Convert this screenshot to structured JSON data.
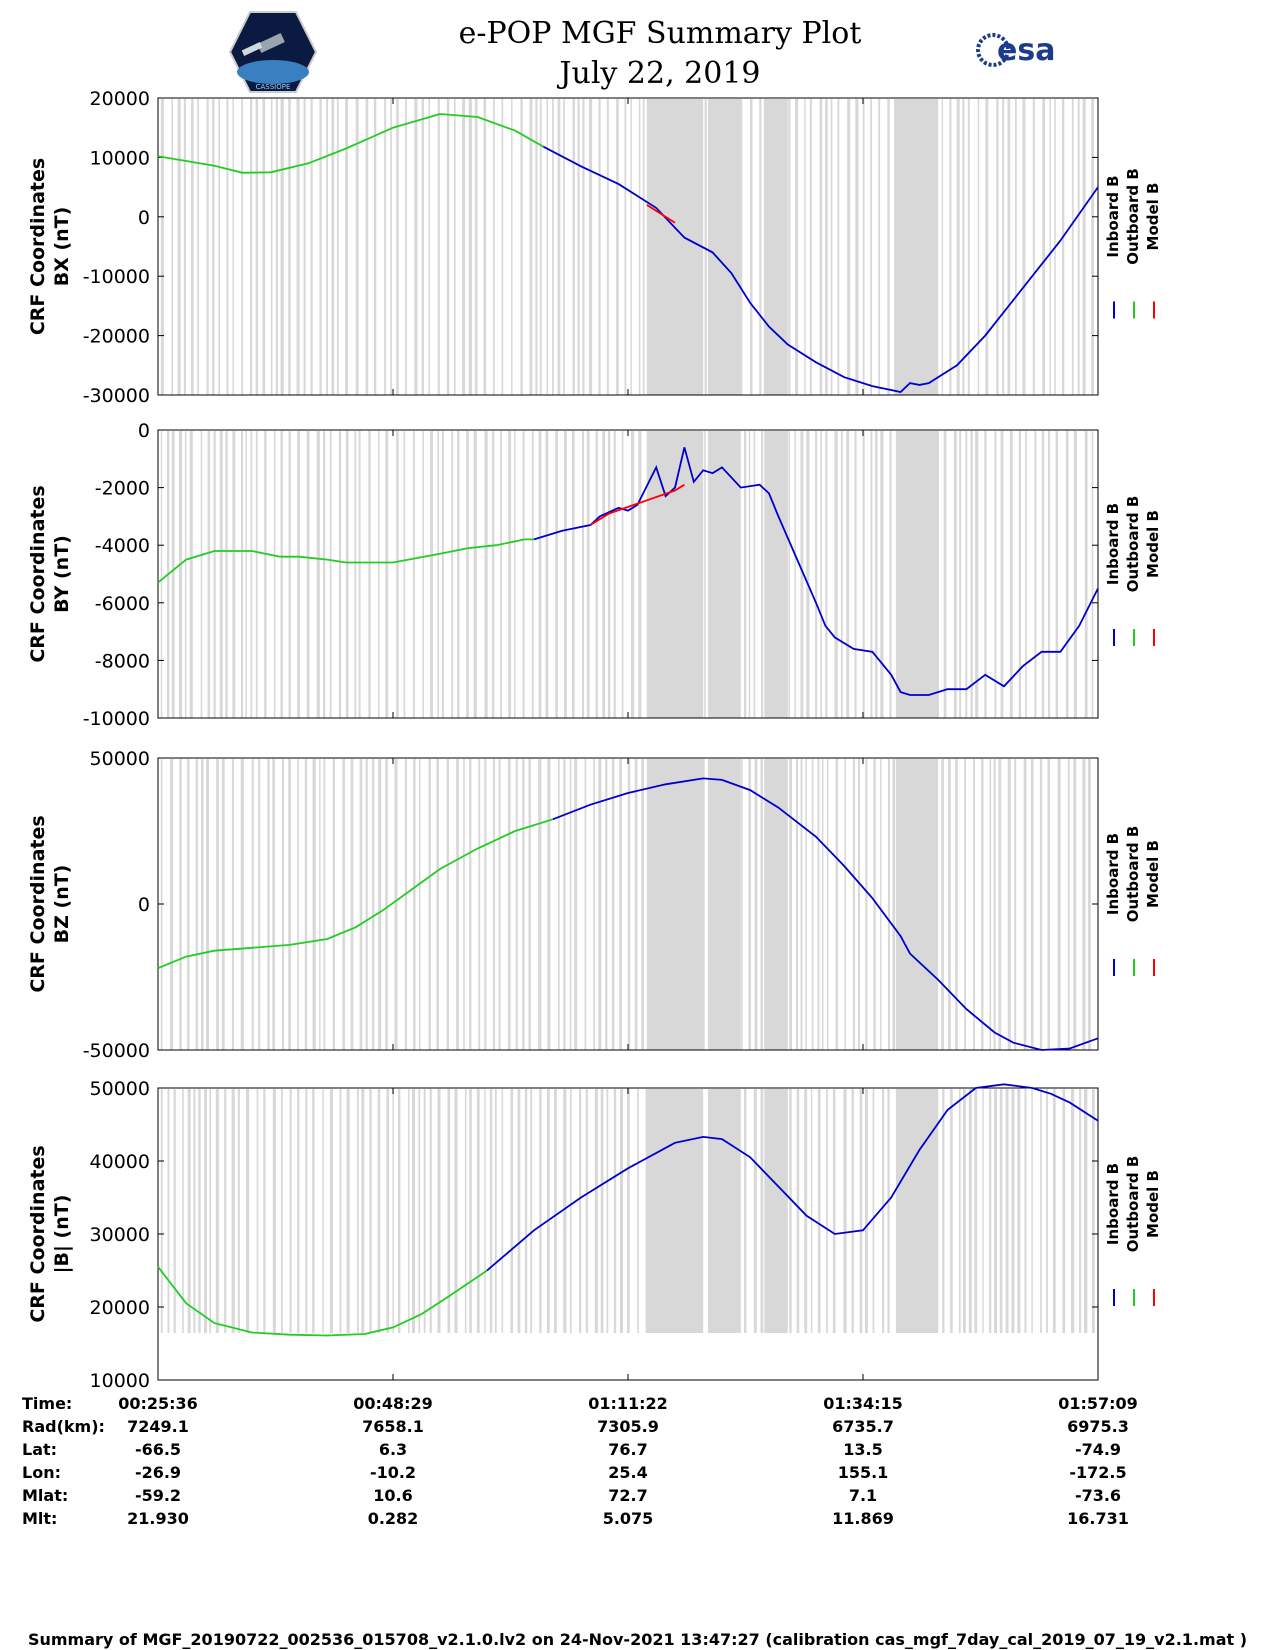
{
  "header": {
    "title_line1": "e-POP MGF Summary Plot",
    "title_line2": "July 22, 2019",
    "logo_left_text": "CASSIOPE",
    "logo_right_text": "esa"
  },
  "legend": [
    "Inboard B",
    "Outboard B",
    "Model B"
  ],
  "colors": {
    "inboard": "#0000cc",
    "outboard": "#22cc22",
    "model": "#ff0000",
    "gap": "#d8d8d8"
  },
  "chart_data": [
    {
      "type": "line",
      "ylabel_line1": "CRF Coordinates",
      "ylabel_line2": "BX (nT)",
      "ylim": [
        -30000,
        20000
      ],
      "yticks": [
        "20000",
        "10000",
        "0",
        "-10000",
        "-20000",
        "-30000"
      ],
      "series": [
        {
          "name": "Outboard B",
          "x": [
            0,
            0.06,
            0.09,
            0.12,
            0.16,
            0.2,
            0.25,
            0.3,
            0.34,
            0.38,
            0.41
          ],
          "values": [
            10200,
            8600,
            7400,
            7500,
            9000,
            11500,
            15000,
            17300,
            16800,
            14500,
            11800
          ]
        },
        {
          "name": "Inboard B",
          "x": [
            0.41,
            0.45,
            0.49,
            0.53,
            0.56,
            0.59,
            0.61,
            0.63,
            0.65,
            0.67,
            0.7,
            0.73,
            0.76,
            0.79,
            0.8,
            0.81,
            0.82,
            0.85,
            0.88,
            0.92,
            0.96,
            1.0
          ],
          "values": [
            11800,
            8500,
            5500,
            1500,
            -3500,
            -6000,
            -9500,
            -14500,
            -18500,
            -21500,
            -24500,
            -27000,
            -28500,
            -29500,
            -28000,
            -28300,
            -28000,
            -25000,
            -20000,
            -12000,
            -4000,
            5000
          ]
        },
        {
          "name": "Model B",
          "x": [
            0.52,
            0.55
          ],
          "values": [
            2000,
            -1000
          ]
        }
      ]
    },
    {
      "type": "line",
      "ylabel_line1": "CRF Coordinates",
      "ylabel_line2": "BY (nT)",
      "ylim": [
        -10000,
        0
      ],
      "yticks": [
        "0",
        "-2000",
        "-4000",
        "-6000",
        "-8000",
        "-10000"
      ],
      "series": [
        {
          "name": "Outboard B",
          "x": [
            0,
            0.03,
            0.06,
            0.1,
            0.13,
            0.15,
            0.18,
            0.2,
            0.25,
            0.3,
            0.33,
            0.36,
            0.39,
            0.4
          ],
          "values": [
            -5300,
            -4500,
            -4200,
            -4200,
            -4400,
            -4400,
            -4500,
            -4600,
            -4600,
            -4300,
            -4100,
            -4000,
            -3800,
            -3800
          ]
        },
        {
          "name": "Inboard B",
          "x": [
            0.4,
            0.43,
            0.46,
            0.47,
            0.49,
            0.5,
            0.51,
            0.53,
            0.54,
            0.55,
            0.56,
            0.57,
            0.58,
            0.59,
            0.6,
            0.62,
            0.64,
            0.65,
            0.66,
            0.68,
            0.7,
            0.71,
            0.72,
            0.74,
            0.76,
            0.78,
            0.79,
            0.8,
            0.82,
            0.84,
            0.86,
            0.88,
            0.9,
            0.92,
            0.94,
            0.96,
            0.98,
            1.0
          ],
          "values": [
            -3800,
            -3500,
            -3300,
            -3000,
            -2700,
            -2800,
            -2600,
            -1300,
            -2300,
            -2000,
            -600,
            -1800,
            -1400,
            -1500,
            -1300,
            -2000,
            -1900,
            -2200,
            -3000,
            -4500,
            -6000,
            -6800,
            -7200,
            -7600,
            -7700,
            -8500,
            -9100,
            -9200,
            -9200,
            -9000,
            -9000,
            -8500,
            -8900,
            -8200,
            -7700,
            -7700,
            -6800,
            -5500
          ]
        },
        {
          "name": "Model B",
          "x": [
            0.46,
            0.48,
            0.55,
            0.56
          ],
          "values": [
            -3300,
            -2900,
            -2100,
            -1900
          ]
        }
      ]
    },
    {
      "type": "line",
      "ylabel_line1": "CRF Coordinates",
      "ylabel_line2": "BZ (nT)",
      "ylim": [
        -50000,
        50000
      ],
      "yticks": [
        "50000",
        "0",
        "-50000"
      ],
      "series": [
        {
          "name": "Outboard B",
          "x": [
            0,
            0.03,
            0.06,
            0.1,
            0.14,
            0.18,
            0.21,
            0.24,
            0.27,
            0.3,
            0.34,
            0.38,
            0.42
          ],
          "values": [
            -22000,
            -18000,
            -16000,
            -15000,
            -14000,
            -12000,
            -8000,
            -2000,
            5000,
            12000,
            19000,
            25000,
            29000
          ]
        },
        {
          "name": "Inboard B",
          "x": [
            0.42,
            0.46,
            0.5,
            0.54,
            0.58,
            0.6,
            0.63,
            0.66,
            0.7,
            0.73,
            0.76,
            0.79,
            0.8,
            0.81,
            0.83,
            0.86,
            0.89,
            0.91,
            0.94,
            0.97,
            1.0
          ],
          "values": [
            29000,
            34000,
            38000,
            41000,
            43000,
            42500,
            39000,
            33000,
            23000,
            13000,
            2000,
            -11000,
            -17000,
            -20000,
            -26000,
            -36000,
            -44000,
            -47500,
            -50000,
            -49500,
            -46000
          ]
        },
        {
          "name": "Model B",
          "x": [],
          "values": []
        }
      ]
    },
    {
      "type": "line",
      "ylabel_line1": "CRF Coordinates",
      "ylabel_line2": "|B| (nT)",
      "ylim": [
        10000,
        50000
      ],
      "yticks": [
        "50000",
        "40000",
        "30000",
        "20000",
        "10000"
      ],
      "series": [
        {
          "name": "Outboard B",
          "x": [
            0,
            0.03,
            0.06,
            0.1,
            0.14,
            0.18,
            0.22,
            0.25,
            0.28,
            0.31,
            0.35
          ],
          "values": [
            25500,
            20500,
            17800,
            16500,
            16200,
            16100,
            16300,
            17200,
            19000,
            21500,
            25000
          ]
        },
        {
          "name": "Inboard B",
          "x": [
            0.35,
            0.4,
            0.45,
            0.5,
            0.55,
            0.58,
            0.6,
            0.63,
            0.66,
            0.69,
            0.72,
            0.75,
            0.78,
            0.81,
            0.84,
            0.87,
            0.9,
            0.93,
            0.95,
            0.97,
            1.0
          ],
          "values": [
            25000,
            30500,
            35000,
            39000,
            42500,
            43300,
            43000,
            40500,
            36500,
            32500,
            30000,
            30500,
            35000,
            41500,
            47000,
            50000,
            50500,
            50000,
            49200,
            48000,
            45500
          ]
        },
        {
          "name": "Model B",
          "x": [],
          "values": []
        }
      ]
    }
  ],
  "info_table": {
    "labels": [
      "Time:",
      "Rad(km):",
      "Lat:",
      "Lon:",
      "Mlat:",
      "Mlt:"
    ],
    "columns": [
      [
        "00:25:36",
        "7249.1",
        "-66.5",
        "-26.9",
        "-59.2",
        "21.930"
      ],
      [
        "00:48:29",
        "7658.1",
        "6.3",
        "-10.2",
        "10.6",
        "0.282"
      ],
      [
        "01:11:22",
        "7305.9",
        "76.7",
        "25.4",
        "72.7",
        "5.075"
      ],
      [
        "01:34:15",
        "6735.7",
        "13.5",
        "155.1",
        "7.1",
        "11.869"
      ],
      [
        "01:57:09",
        "6975.3",
        "-74.9",
        "-172.5",
        "-73.6",
        "16.731"
      ]
    ]
  },
  "footer": "Summary of MGF_20190722_002536_015708_v2.1.0.lv2 on 24-Nov-2021 13:47:27 (calibration cas_mgf_7day_cal_2019_07_19_v2.1.mat )"
}
